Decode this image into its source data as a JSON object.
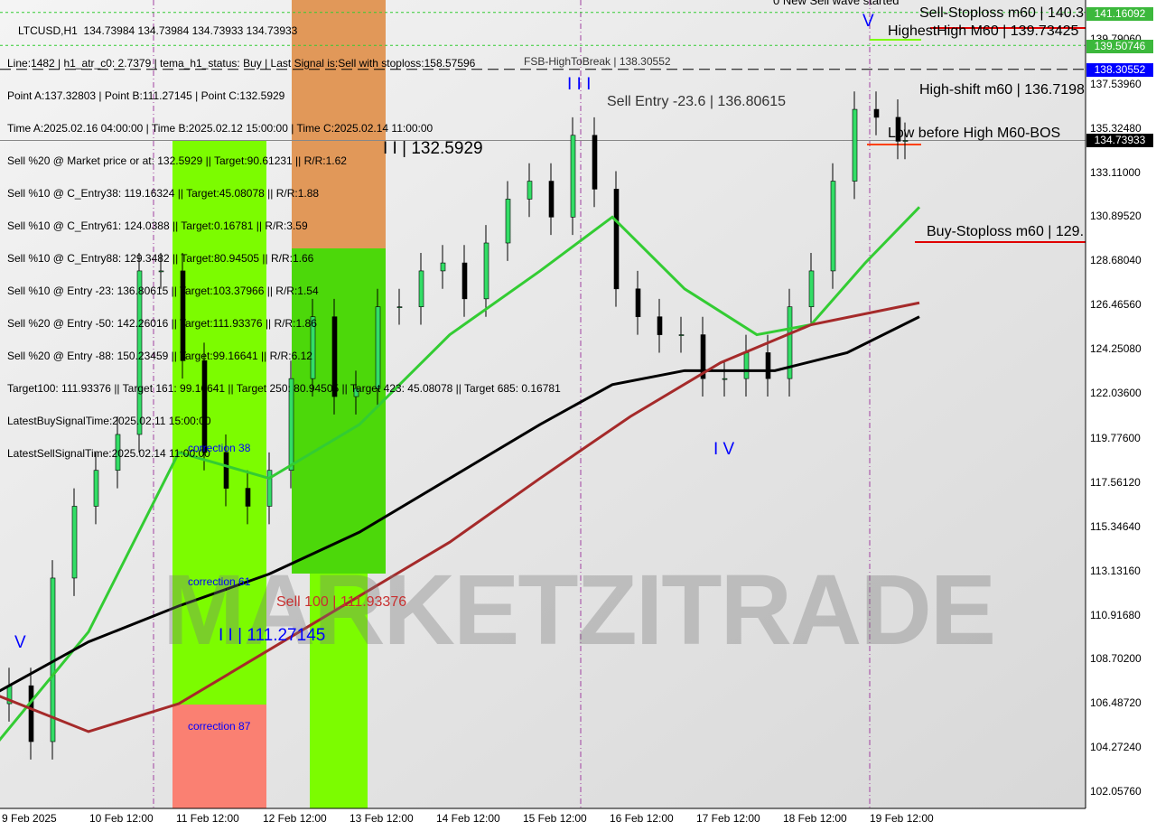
{
  "header": {
    "symbol_line": "LTCUSD,H1  134.73984 134.73984 134.73933 134.73933"
  },
  "info_lines": [
    "Line:1482 | h1_atr_c0: 2.7379 | tema_h1_status: Buy | Last Signal is:Sell with stoploss:158.57596",
    "Point A:137.32803 | Point B:111.27145 | Point C:132.5929",
    "Time A:2025.02.16 04:00:00 | Time B:2025.02.12 15:00:00 | Time C:2025.02.14 11:00:00",
    "Sell %20 @ Market price or at: 132.5929 || Target:90.61231 || R/R:1.62",
    "Sell %10 @ C_Entry38: 119.16324 || Target:45.08078 || R/R:1.88",
    "Sell %10 @ C_Entry61: 124.0388 || Target:0.16781 || R/R:3.59",
    "Sell %10 @ C_Entry88: 129.3482 || Target:80.94505 || R/R:1.66",
    "Sell %10 @ Entry -23: 136.80615 || Target:103.37966 || R/R:1.54",
    "Sell %20 @ Entry -50: 142.26016 || Target:111.93376 || R/R:1.86",
    "Sell %20 @ Entry -88: 150.23459 || Target:99.16641 || R/R:6.12",
    "Target100: 111.93376 || Target 161: 99.16641 || Target 250: 80.94505 || Target 423: 45.08078 || Target 685: 0.16781",
    "LatestBuySignalTime:2025.02.11 15:00:00",
    "LatestSellSignalTime:2025.02.14 11:00:00"
  ],
  "annotations": {
    "new_wave": "0 New Sell wave started",
    "sell_stoploss": "Sell-Stoploss m60 | 140.3",
    "highest_high": "HighestHigh   M60 | 139.73425",
    "high_shift": "High-shift m60 | 136.7198",
    "low_before_high": "Low before High   M60-BOS",
    "buy_stoploss": "Buy-Stoploss m60 | 129.",
    "fsb": "FSB-HighToBreak | 138.30552",
    "sell_entry": "Sell Entry -23.6 | 136.80615",
    "point_c": "I I | 132.5929",
    "point_b": "I I | 111.27145",
    "sell100": "Sell 100 | 111.93376",
    "corr38": "correction 38",
    "corr61": "correction 61",
    "corr87": "correction 87",
    "wave_v_left": "V",
    "wave_iii": "I I I",
    "wave_iv": "I V",
    "wave_v": "V",
    "watermark": "MARKETZITRADE"
  },
  "price_tags": [
    {
      "value": "141.16092",
      "color": "#3cb83c"
    },
    {
      "value": "139.50746",
      "color": "#3cb83c"
    },
    {
      "value": "138.30552",
      "color": "#0000ff"
    },
    {
      "value": "134.73933",
      "color": "#000000"
    }
  ],
  "chart_data": {
    "type": "candlestick",
    "title": "LTCUSD,H1",
    "ylim": [
      101.0,
      141.8
    ],
    "y_ticks": [
      "139.79060",
      "137.53960",
      "135.32480",
      "133.11000",
      "130.89520",
      "128.68040",
      "126.46560",
      "124.25080",
      "122.03600",
      "119.77600",
      "117.56120",
      "115.34640",
      "113.13160",
      "110.91680",
      "108.70200",
      "106.48720",
      "104.27240",
      "102.05760"
    ],
    "x_ticks": [
      "9 Feb 2025",
      "10 Feb 12:00",
      "11 Feb 12:00",
      "12 Feb 12:00",
      "13 Feb 12:00",
      "14 Feb 12:00",
      "15 Feb 12:00",
      "16 Feb 12:00",
      "17 Feb 12:00",
      "18 Feb 12:00",
      "19 Feb 12:00"
    ],
    "x_tick_times": [
      "2025-02-09 00:00",
      "2025-02-10 12:00",
      "2025-02-11 12:00",
      "2025-02-12 12:00",
      "2025-02-13 12:00",
      "2025-02-14 12:00",
      "2025-02-15 12:00",
      "2025-02-16 12:00",
      "2025-02-17 12:00",
      "2025-02-18 12:00",
      "2025-02-19 12:00"
    ],
    "close": {
      "times": [
        "2025-02-09 02:00",
        "2025-02-09 08:00",
        "2025-02-09 14:00",
        "2025-02-09 20:00",
        "2025-02-10 02:00",
        "2025-02-10 08:00",
        "2025-02-10 14:00",
        "2025-02-10 20:00",
        "2025-02-11 02:00",
        "2025-02-11 08:00",
        "2025-02-11 14:00",
        "2025-02-11 20:00",
        "2025-02-12 02:00",
        "2025-02-12 08:00",
        "2025-02-12 14:00",
        "2025-02-12 20:00",
        "2025-02-13 02:00",
        "2025-02-13 08:00",
        "2025-02-13 14:00",
        "2025-02-13 20:00",
        "2025-02-14 02:00",
        "2025-02-14 08:00",
        "2025-02-14 14:00",
        "2025-02-14 20:00",
        "2025-02-15 02:00",
        "2025-02-15 08:00",
        "2025-02-15 14:00",
        "2025-02-15 20:00",
        "2025-02-16 02:00",
        "2025-02-16 08:00",
        "2025-02-16 14:00",
        "2025-02-16 20:00",
        "2025-02-17 02:00",
        "2025-02-17 08:00",
        "2025-02-17 14:00",
        "2025-02-17 20:00",
        "2025-02-18 02:00",
        "2025-02-18 08:00",
        "2025-02-18 14:00",
        "2025-02-18 20:00",
        "2025-02-19 02:00",
        "2025-02-19 08:00",
        "2025-02-19 14:00",
        "2025-02-19 16:00"
      ],
      "values": [
        106.5,
        107.4,
        104.6,
        112.8,
        116.4,
        118.2,
        120.0,
        128.2,
        128.2,
        123.7,
        119.1,
        117.3,
        116.4,
        118.2,
        122.8,
        125.9,
        121.9,
        122.3,
        126.4,
        126.4,
        128.2,
        128.6,
        126.8,
        129.6,
        131.8,
        132.7,
        130.9,
        135.0,
        132.3,
        127.3,
        125.9,
        125.0,
        125.0,
        122.8,
        122.8,
        124.1,
        122.8,
        126.4,
        128.2,
        132.7,
        136.3,
        135.9,
        134.7,
        134.74
      ]
    },
    "ma_lines": [
      {
        "color": "#33cc33",
        "times": [
          "2025-02-09 02:00",
          "2025-02-10 03:00",
          "2025-02-11 04:00",
          "2025-02-12 05:00",
          "2025-02-13 06:00",
          "2025-02-14 07:00",
          "2025-02-15 08:00",
          "2025-02-16 04:00",
          "2025-02-17 00:00",
          "2025-02-17 20:00",
          "2025-02-18 11:00",
          "2025-02-19 02:00",
          "2025-02-19 17:00"
        ],
        "values": [
          104.6,
          110.1,
          119.1,
          117.8,
          120.5,
          125.0,
          128.2,
          130.9,
          127.3,
          125.0,
          125.5,
          128.6,
          131.4
        ]
      },
      {
        "color": "#000000",
        "times": [
          "2025-02-09 02:00",
          "2025-02-10 03:00",
          "2025-02-11 04:00",
          "2025-02-12 05:00",
          "2025-02-13 06:00",
          "2025-02-14 07:00",
          "2025-02-15 08:00",
          "2025-02-16 04:00",
          "2025-02-17 00:00",
          "2025-02-18 01:00",
          "2025-02-18 21:00",
          "2025-02-19 17:00"
        ],
        "values": [
          107.1,
          109.6,
          111.4,
          113.0,
          115.1,
          117.8,
          120.5,
          122.5,
          123.2,
          123.2,
          124.1,
          125.9
        ]
      },
      {
        "color": "#a52a2a",
        "times": [
          "2025-02-09 02:00",
          "2025-02-10 03:00",
          "2025-02-11 04:00",
          "2025-02-12 05:00",
          "2025-02-13 06:00",
          "2025-02-14 07:00",
          "2025-02-15 08:00",
          "2025-02-16 09:00",
          "2025-02-17 10:00",
          "2025-02-18 11:00",
          "2025-02-19 17:00"
        ],
        "values": [
          106.9,
          105.1,
          106.5,
          109.2,
          111.9,
          114.6,
          117.8,
          120.9,
          123.6,
          125.5,
          126.6
        ]
      }
    ],
    "hlines": [
      {
        "value": 141.16092,
        "color": "#33cc33",
        "style": "dotted"
      },
      {
        "value": 139.50746,
        "color": "#33cc33",
        "style": "dotted"
      },
      {
        "value": 138.30552,
        "color": "#000000",
        "style": "dashed"
      },
      {
        "value": 134.73933,
        "color": "#888888",
        "style": "solid"
      }
    ]
  }
}
